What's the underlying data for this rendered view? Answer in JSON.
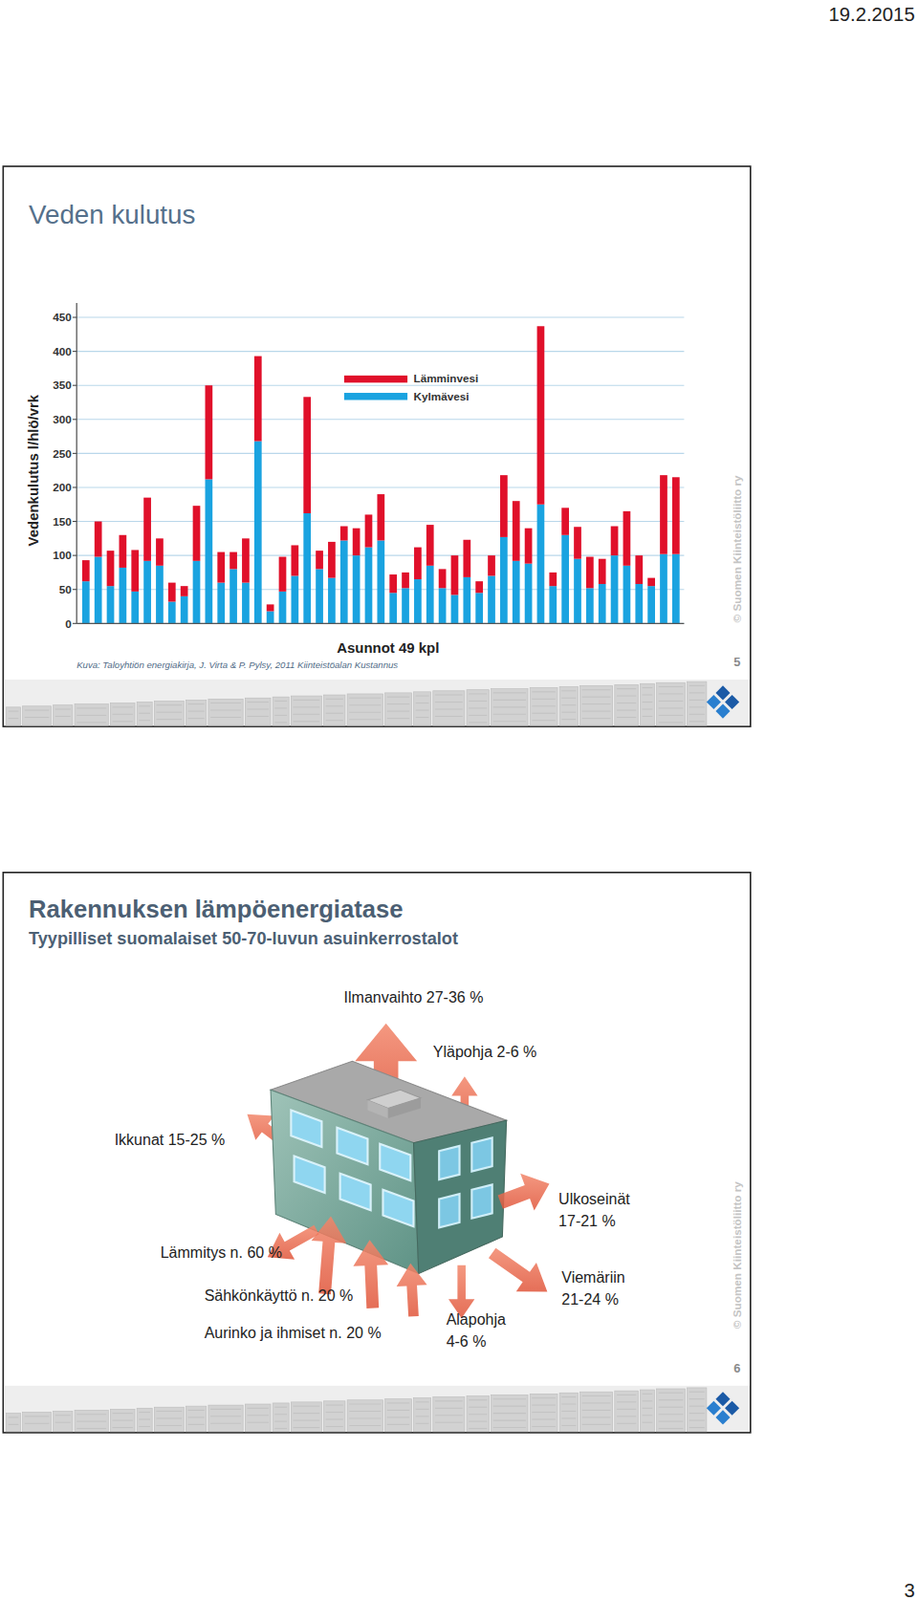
{
  "header": {
    "date": "19.2.2015"
  },
  "slides": [
    {
      "title": "Veden kulutus",
      "caption": "Kuva: Taloyhtiön energiakirja, J. Virta & P. Pylsy, 2011 Kiinteistöalan Kustannus",
      "copyright": "© Suomen Kiinteistöliitto ry",
      "number": "5"
    },
    {
      "title": "Rakennuksen lämpöenergiatase",
      "subtitle": "Tyypilliset suomalaiset 50-70-luvun asuinkerrostalot",
      "labels": [
        {
          "lines": [
            "Ilmanvaihto 27-36 %"
          ]
        },
        {
          "lines": [
            "Yläpohja 2-6 %"
          ]
        },
        {
          "lines": [
            "Ikkunat 15-25 %"
          ]
        },
        {
          "lines": [
            "Ulkoseinät",
            "17-21 %"
          ]
        },
        {
          "lines": [
            "Lämmitys n. 60 %"
          ]
        },
        {
          "lines": [
            "Viemäriin",
            "21-24 %"
          ]
        },
        {
          "lines": [
            "Sähkönkäyttö n. 20 %"
          ]
        },
        {
          "lines": [
            "Alapohja",
            "4-6 %"
          ]
        },
        {
          "lines": [
            "Aurinko ja ihmiset n. 20 %"
          ]
        }
      ],
      "copyright": "© Suomen Kiinteistöliitto ry",
      "number": "6"
    }
  ],
  "chart_data": {
    "type": "bar",
    "stacked": true,
    "ylabel": "Vedenkulutus l/hlö/vrk",
    "xlabel": "Asunnot 49 kpl",
    "categories": [
      null,
      null,
      null,
      null,
      null,
      null,
      null,
      null,
      null,
      null,
      null,
      null,
      null,
      null,
      null,
      null,
      null,
      null,
      null,
      null,
      null,
      null,
      null,
      null,
      null,
      null,
      null,
      null,
      null,
      null,
      null,
      null,
      null,
      null,
      null,
      null,
      null,
      null,
      null,
      null,
      null,
      null,
      null,
      null,
      null,
      null,
      null,
      null,
      null
    ],
    "series": [
      {
        "name": "Kylmävesi",
        "color": "#1aa3e0",
        "values": [
          62,
          98,
          55,
          82,
          47,
          92,
          85,
          32,
          40,
          92,
          212,
          60,
          80,
          60,
          268,
          18,
          47,
          70,
          162,
          80,
          67,
          122,
          100,
          112,
          122,
          45,
          52,
          65,
          85,
          52,
          42,
          68,
          45,
          70,
          127,
          92,
          88,
          175,
          55,
          130,
          95,
          52,
          58,
          100,
          85,
          58,
          55,
          102,
          102
        ]
      },
      {
        "name": "Lämminvesi",
        "color": "#e0102a",
        "values": [
          31,
          52,
          52,
          48,
          61,
          93,
          40,
          28,
          15,
          81,
          138,
          45,
          25,
          65,
          125,
          10,
          51,
          45,
          171,
          27,
          53,
          21,
          40,
          48,
          68,
          27,
          23,
          47,
          60,
          28,
          58,
          55,
          17,
          30,
          91,
          88,
          52,
          262,
          20,
          40,
          47,
          46,
          37,
          43,
          80,
          42,
          12,
          116,
          113
        ]
      }
    ],
    "ylim": [
      0,
      450
    ],
    "yticks": [
      0,
      50,
      100,
      150,
      200,
      250,
      300,
      350,
      400,
      450
    ],
    "grid": true,
    "legend": "top"
  },
  "footer": {
    "page": "3"
  }
}
